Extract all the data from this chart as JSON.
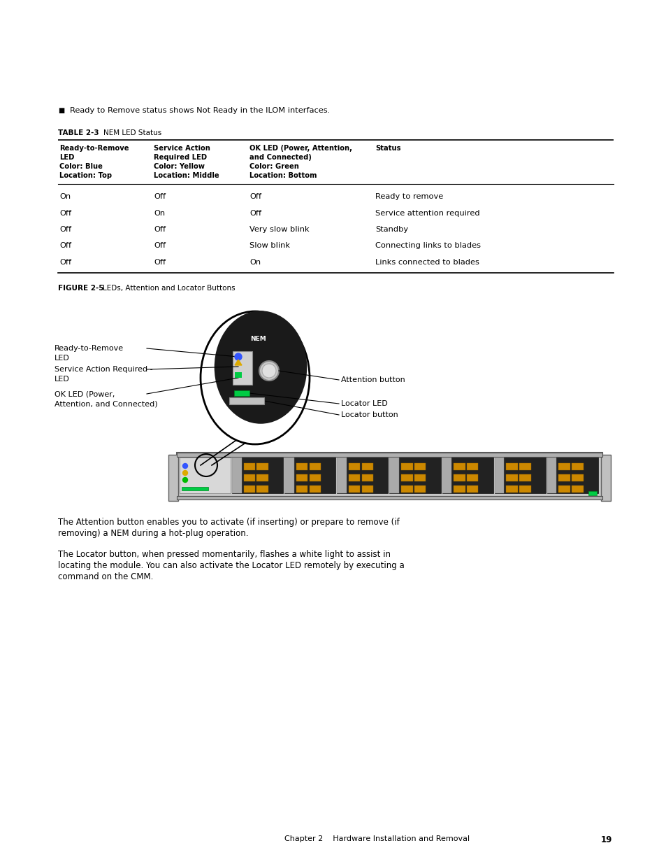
{
  "bg_color": "#ffffff",
  "bullet_text": "Ready to Remove status shows Not Ready in the ILOM interfaces.",
  "table_title": "TABLE 2-3",
  "table_title_suffix": "NEM LED Status",
  "col_headers_line1": [
    "Ready-to-Remove",
    "Service Action",
    "OK LED (Power, Attention,",
    "Status"
  ],
  "col_headers_line2": [
    "LED",
    "Required LED",
    "and Connected)",
    ""
  ],
  "col_headers_line3": [
    "Color: Blue",
    "Color: Yellow",
    "Color: Green",
    ""
  ],
  "col_headers_line4": [
    "Location: Top",
    "Location: Middle",
    "Location: Bottom",
    ""
  ],
  "table_rows": [
    [
      "On",
      "Off",
      "Off",
      "Ready to remove"
    ],
    [
      "Off",
      "On",
      "Off",
      "Service attention required"
    ],
    [
      "Off",
      "Off",
      "Very slow blink",
      "Standby"
    ],
    [
      "Off",
      "Off",
      "Slow blink",
      "Connecting links to blades"
    ],
    [
      "Off",
      "Off",
      "On",
      "Links connected to blades"
    ]
  ],
  "figure_caption_bold": "FIGURE 2-5",
  "figure_caption_normal": "LEDs, Attention and Locator Buttons",
  "label_rtr1": "Ready-to-Remove",
  "label_rtr2": "LED",
  "label_sar1": "Service Action Required -",
  "label_sar2": "LED",
  "label_ok1": "OK LED (Power,",
  "label_ok2": "Attention, and Connected)",
  "label_att": "Attention button",
  "label_loc_led": "Locator LED",
  "label_loc_btn": "Locator button",
  "para1_line1": "The Attention button enables you to activate (if inserting) or prepare to remove (if",
  "para1_line2": "removing) a NEM during a hot-plug operation.",
  "para2_line1": "The Locator button, when pressed momentarily, flashes a white light to assist in",
  "para2_line2": "locating the module. You can also activate the Locator LED remotely by executing a",
  "para2_line3": "command on the CMM.",
  "footer_text": "Chapter 2    Hardware Installation and Removal",
  "footer_page": "19"
}
